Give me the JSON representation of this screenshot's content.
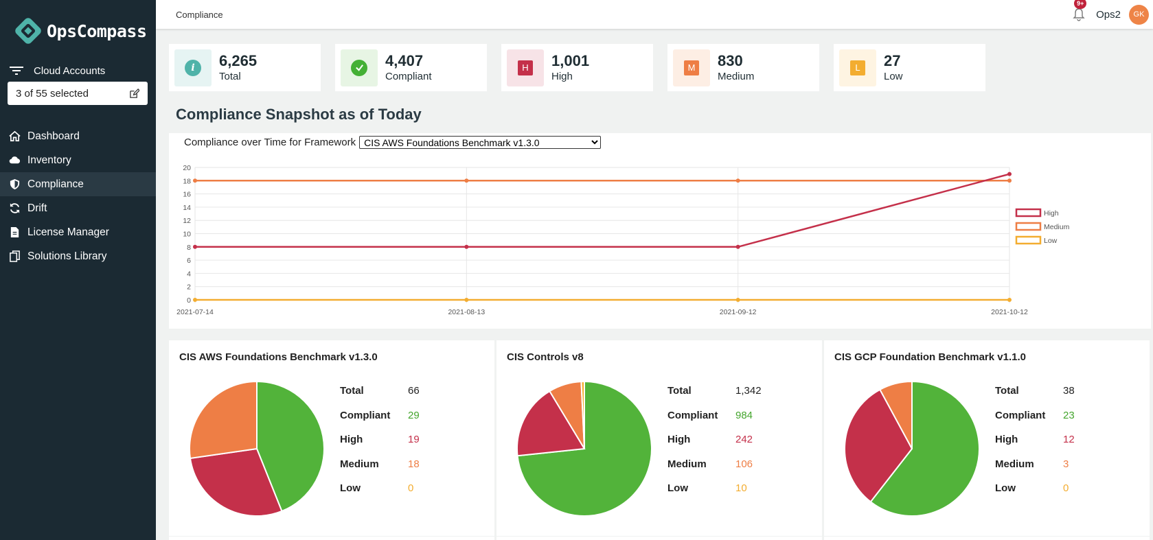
{
  "brand": {
    "name": "OpsCompass"
  },
  "sidebar": {
    "cloud_accounts_label": "Cloud Accounts",
    "selector_value": "3 of 55 selected",
    "items": [
      {
        "label": "Dashboard",
        "icon": "home-icon"
      },
      {
        "label": "Inventory",
        "icon": "cloud-icon"
      },
      {
        "label": "Compliance",
        "icon": "shield-icon",
        "active": true
      },
      {
        "label": "Drift",
        "icon": "refresh-icon"
      },
      {
        "label": "License Manager",
        "icon": "document-icon"
      },
      {
        "label": "Solutions Library",
        "icon": "copy-icon"
      }
    ]
  },
  "header": {
    "breadcrumb": "Compliance",
    "notification_count": "9+",
    "user_name": "Ops2",
    "avatar_initials": "GK"
  },
  "stats": [
    {
      "value": "6,265",
      "label": "Total",
      "icon": "info-icon",
      "color": "#4fb3a9",
      "bg": "#e6f4f3"
    },
    {
      "value": "4,407",
      "label": "Compliant",
      "icon": "check-icon",
      "color": "#44b035",
      "bg": "#e7f5e4"
    },
    {
      "value": "1,001",
      "label": "High",
      "icon": "H",
      "color": "#c4304a",
      "bg": "#f7e3e7"
    },
    {
      "value": "830",
      "label": "Medium",
      "icon": "M",
      "color": "#ee7e45",
      "bg": "#fdeee4"
    },
    {
      "value": "27",
      "label": "Low",
      "icon": "L",
      "color": "#f3ad30",
      "bg": "#fef4e2"
    }
  ],
  "section_title": "Compliance Snapshot as of Today",
  "chart": {
    "header_label": "Compliance over Time for Framework",
    "framework_selected": "CIS AWS Foundations Benchmark v1.3.0"
  },
  "chart_data": {
    "type": "line",
    "x": [
      "2021-07-14",
      "2021-08-13",
      "2021-09-12",
      "2021-10-12"
    ],
    "ylim": [
      0,
      20
    ],
    "yticks": [
      0,
      2,
      4,
      6,
      8,
      10,
      12,
      14,
      16,
      18,
      20
    ],
    "grid": true,
    "legend": "right",
    "series": [
      {
        "name": "High",
        "color": "#c4304a",
        "values": [
          8,
          8,
          8,
          19
        ]
      },
      {
        "name": "Medium",
        "color": "#ee7e45",
        "values": [
          18,
          18,
          18,
          18
        ]
      },
      {
        "name": "Low",
        "color": "#f3ad30",
        "values": [
          0,
          0,
          0,
          0
        ]
      }
    ]
  },
  "frameworks": [
    {
      "title": "CIS AWS Foundations Benchmark v1.3.0",
      "rows": [
        {
          "label": "Total",
          "value": "66"
        },
        {
          "label": "Compliant",
          "value": "29"
        },
        {
          "label": "High",
          "value": "19"
        },
        {
          "label": "Medium",
          "value": "18"
        },
        {
          "label": "Low",
          "value": "0"
        }
      ],
      "pie": {
        "Compliant": 29,
        "High": 19,
        "Medium": 18,
        "Low": 0
      }
    },
    {
      "title": "CIS Controls v8",
      "rows": [
        {
          "label": "Total",
          "value": "1,342"
        },
        {
          "label": "Compliant",
          "value": "984"
        },
        {
          "label": "High",
          "value": "242"
        },
        {
          "label": "Medium",
          "value": "106"
        },
        {
          "label": "Low",
          "value": "10"
        }
      ],
      "pie": {
        "Compliant": 984,
        "High": 242,
        "Medium": 106,
        "Low": 10
      }
    },
    {
      "title": "CIS GCP Foundation Benchmark v1.1.0",
      "rows": [
        {
          "label": "Total",
          "value": "38"
        },
        {
          "label": "Compliant",
          "value": "23"
        },
        {
          "label": "High",
          "value": "12"
        },
        {
          "label": "Medium",
          "value": "3"
        },
        {
          "label": "Low",
          "value": "0"
        }
      ],
      "pie": {
        "Compliant": 23,
        "High": 12,
        "Medium": 3,
        "Low": 0
      }
    }
  ],
  "colors": {
    "compliant": "#52b33a",
    "high": "#c4304a",
    "medium": "#ee7e45",
    "low": "#f3ad30"
  }
}
